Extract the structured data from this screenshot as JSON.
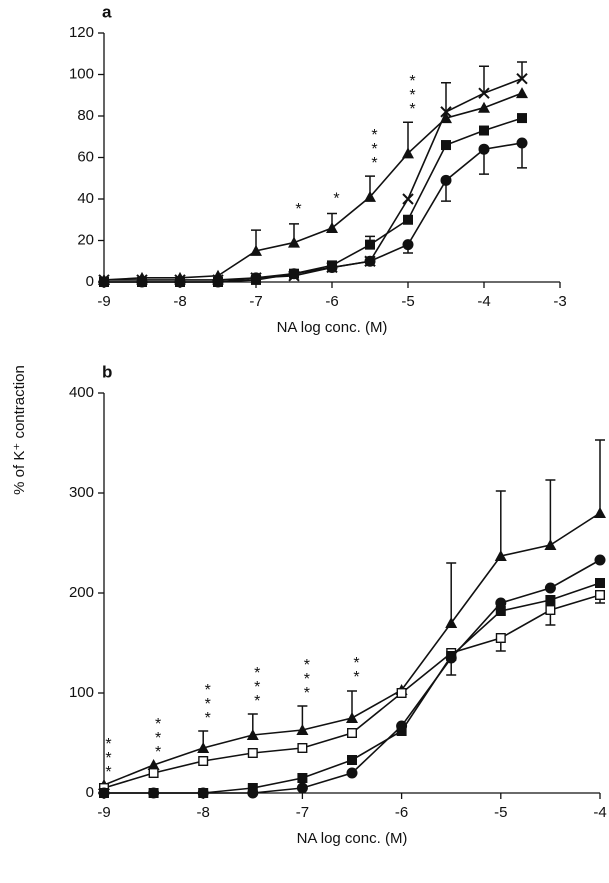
{
  "shared_ylabel": "% of K⁺ contraction",
  "chart_data": [
    {
      "type": "line",
      "label": "a",
      "xlabel": "NA log conc. (M)",
      "xlim": [
        -9,
        -3
      ],
      "xticks": [
        -9,
        -8,
        -7,
        -6,
        -5,
        -4,
        -3
      ],
      "ylim": [
        0,
        120
      ],
      "yticks": [
        0,
        20,
        40,
        60,
        80,
        100,
        120
      ],
      "x": [
        -9,
        -8.5,
        -8,
        -7.5,
        -7,
        -6.5,
        -6,
        -5.5,
        -5,
        -4.5,
        -4,
        -3.5
      ],
      "series": [
        {
          "marker": "triangle",
          "color": "#111",
          "error_direction": "up",
          "values": [
            1,
            2,
            2,
            3,
            15,
            19,
            26,
            41,
            62,
            79,
            84,
            91
          ],
          "errors": [
            null,
            null,
            null,
            null,
            10,
            9,
            7,
            10,
            15,
            17,
            null,
            null
          ]
        },
        {
          "marker": "cross",
          "color": "#111",
          "error_direction": "up",
          "values": [
            1,
            1,
            1,
            1,
            2,
            3,
            7,
            10,
            40,
            82,
            91,
            98
          ],
          "errors": [
            null,
            null,
            null,
            null,
            null,
            null,
            null,
            null,
            null,
            null,
            13,
            8
          ]
        },
        {
          "marker": "square",
          "color": "#111",
          "error_direction": "up",
          "values": [
            0,
            0,
            0,
            0,
            1,
            4,
            8,
            18,
            30,
            66,
            73,
            79
          ],
          "errors": [
            null,
            null,
            null,
            null,
            null,
            null,
            null,
            4,
            null,
            null,
            null,
            null
          ]
        },
        {
          "marker": "circle",
          "color": "#111",
          "error_direction": "down",
          "values": [
            0,
            0,
            0,
            0,
            2,
            4,
            7,
            10,
            18,
            49,
            64,
            67
          ],
          "errors": [
            null,
            null,
            null,
            null,
            null,
            null,
            null,
            null,
            4,
            10,
            12,
            12
          ]
        }
      ],
      "annotations": [
        {
          "x": -6.5,
          "text": "*"
        },
        {
          "x": -6,
          "text": "*"
        },
        {
          "x": -5.5,
          "text": "***"
        },
        {
          "x": -5,
          "text": "***"
        }
      ]
    },
    {
      "type": "line",
      "label": "b",
      "xlabel": "NA log conc. (M)",
      "xlim": [
        -9,
        -4
      ],
      "xticks": [
        -9,
        -8,
        -7,
        -6,
        -5,
        -4
      ],
      "ylim": [
        0,
        400
      ],
      "yticks": [
        0,
        100,
        200,
        300,
        400
      ],
      "x": [
        -9,
        -8.5,
        -8,
        -7.5,
        -7,
        -6.5,
        -6,
        -5.5,
        -5,
        -4.5,
        -4
      ],
      "series": [
        {
          "marker": "triangle",
          "color": "#111",
          "error_direction": "up",
          "values": [
            8,
            28,
            45,
            58,
            63,
            75,
            103,
            170,
            237,
            248,
            280
          ],
          "errors": [
            null,
            null,
            17,
            21,
            24,
            27,
            null,
            60,
            65,
            65,
            73
          ]
        },
        {
          "marker": "open-square",
          "color": "#111",
          "error_direction": "down",
          "values": [
            5,
            20,
            32,
            40,
            45,
            60,
            100,
            140,
            155,
            183,
            198
          ],
          "errors": [
            null,
            null,
            null,
            null,
            null,
            null,
            null,
            null,
            13,
            15,
            8
          ]
        },
        {
          "marker": "square",
          "color": "#111",
          "error_direction": "up",
          "values": [
            0,
            0,
            0,
            5,
            15,
            33,
            62,
            137,
            182,
            193,
            210
          ],
          "errors": [
            null,
            null,
            null,
            null,
            null,
            null,
            null,
            null,
            null,
            null,
            null
          ]
        },
        {
          "marker": "circle",
          "color": "#111",
          "error_direction": "down",
          "values": [
            0,
            0,
            0,
            0,
            5,
            20,
            67,
            135,
            190,
            205,
            233
          ],
          "errors": [
            null,
            null,
            null,
            null,
            null,
            null,
            null,
            17,
            null,
            null,
            null
          ]
        }
      ],
      "annotations": [
        {
          "x": -9,
          "text": "***"
        },
        {
          "x": -8.5,
          "text": "***"
        },
        {
          "x": -8,
          "text": "***"
        },
        {
          "x": -7.5,
          "text": "***"
        },
        {
          "x": -7,
          "text": "***"
        },
        {
          "x": -6.5,
          "text": "**"
        }
      ]
    }
  ]
}
